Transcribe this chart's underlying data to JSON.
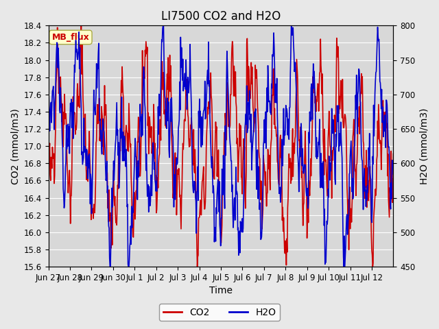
{
  "title": "LI7500 CO2 and H2O",
  "xlabel": "Time",
  "ylabel_left": "CO2 (mmol/m3)",
  "ylabel_right": "H2O (mmol/m3)",
  "co2_ylim": [
    15.6,
    18.4
  ],
  "h2o_ylim": [
    450,
    800
  ],
  "co2_yticks": [
    15.6,
    15.8,
    16.0,
    16.2,
    16.4,
    16.6,
    16.8,
    17.0,
    17.2,
    17.4,
    17.6,
    17.8,
    18.0,
    18.2,
    18.4
  ],
  "h2o_yticks": [
    450,
    500,
    550,
    600,
    650,
    700,
    750,
    800
  ],
  "xtick_labels": [
    "Jun 27",
    "Jun 28",
    "Jun 29",
    "Jun 30",
    "Jul 1",
    "Jul 2",
    "Jul 3",
    "Jul 4",
    "Jul 5",
    "Jul 6",
    "Jul 7",
    "Jul 8",
    "Jul 9",
    "Jul 10",
    "Jul 11",
    "Jul 12"
  ],
  "co2_color": "#cc0000",
  "h2o_color": "#0000cc",
  "bg_color": "#e8e8e8",
  "plot_bg_color": "#d8d8d8",
  "watermark_text": "MB_flux",
  "watermark_fg": "#cc0000",
  "watermark_bg": "#ffffcc",
  "legend_labels": [
    "CO2",
    "H2O"
  ],
  "title_fontsize": 12,
  "axis_fontsize": 10,
  "tick_fontsize": 8.5,
  "linewidth": 1.2,
  "n_days": 16,
  "n_per_day": 48
}
